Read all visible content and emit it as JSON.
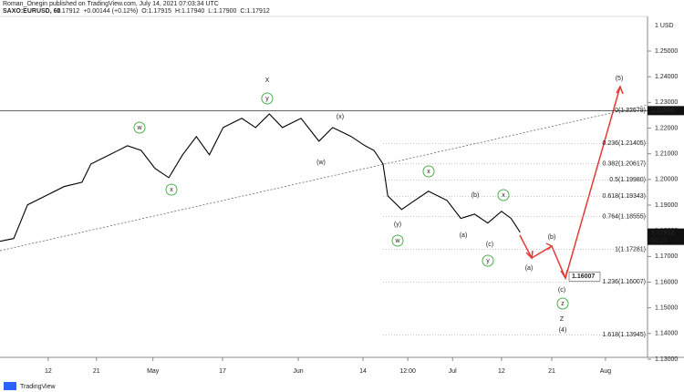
{
  "chart_data": {
    "type": "line",
    "title": "Roman_Onegin published on TradingView.com, July 14, 2021 07:03:34 UTC",
    "symbol": "SAXO:EURUSD, 60",
    "quote": [
      "1.17912",
      "+0.00144 (+0.12%)",
      "O:1.17915",
      "H:1.17940",
      "L:1.17900",
      "C:1.17912"
    ],
    "y_unit": "1 USD",
    "brand": "TradingView",
    "series": [
      {
        "name": "EURUSD",
        "color": "#000000",
        "x": [
          -7.0,
          -5.0,
          -3.0,
          -0.4,
          2.3,
          4.9,
          6.2,
          8.9,
          11.5,
          13.5,
          15.5,
          17.5,
          19.5,
          21.5,
          23.4,
          25.4,
          28.1,
          30.1,
          32.1,
          34.0,
          36.7,
          39.3,
          41.3,
          44.0,
          46.0,
          47.3,
          48.6,
          49.3,
          51.3,
          53.2,
          55.2,
          57.9,
          59.9,
          61.9,
          63.8,
          65.8,
          67.2,
          68.5
        ],
        "values": [
          1.1759,
          1.177,
          1.1901,
          1.1936,
          1.1972,
          1.1989,
          1.206,
          1.2096,
          1.2131,
          1.2113,
          1.2043,
          1.2007,
          1.2096,
          1.2167,
          1.2096,
          1.2202,
          1.2238,
          1.2202,
          1.2255,
          1.2202,
          1.2238,
          1.2149,
          1.2202,
          1.2167,
          1.2131,
          1.2113,
          1.206,
          1.1936,
          1.1883,
          1.1918,
          1.1954,
          1.1918,
          1.1848,
          1.1865,
          1.183,
          1.1876,
          1.1848,
          1.1794
        ]
      }
    ],
    "xlim": [
      -7,
      87
    ],
    "xticks": [
      {
        "value": 0,
        "label": "12"
      },
      {
        "value": 7,
        "label": "21"
      },
      {
        "value": 15.2,
        "label": "May"
      },
      {
        "value": 25.3,
        "label": "17"
      },
      {
        "value": 36.3,
        "label": "Jun"
      },
      {
        "value": 45.7,
        "label": "14"
      },
      {
        "value": 52.2,
        "label": "12:00"
      },
      {
        "value": 58.7,
        "label": "Jul"
      },
      {
        "value": 65.8,
        "label": "12"
      },
      {
        "value": 73.1,
        "label": "21"
      },
      {
        "value": 80.9,
        "label": "Aug"
      }
    ],
    "ylim": [
      1.1307,
      1.2635
    ],
    "yticks": [
      {
        "value": 1.13,
        "label": "1.13000"
      },
      {
        "value": 1.14,
        "label": "1.14000"
      },
      {
        "value": 1.15,
        "label": "1.15000"
      },
      {
        "value": 1.16,
        "label": "1.16000"
      },
      {
        "value": 1.17,
        "label": "1.17000"
      },
      {
        "value": 1.18,
        "label": "1.18000"
      },
      {
        "value": 1.19,
        "label": "1.19000"
      },
      {
        "value": 1.2,
        "label": "1.20000"
      },
      {
        "value": 1.21,
        "label": "1.21000"
      },
      {
        "value": 1.22,
        "label": "1.22000"
      },
      {
        "value": 1.23,
        "label": "1.23000"
      },
      {
        "value": 1.24,
        "label": "1.24000"
      },
      {
        "value": 1.25,
        "label": "1.25000"
      }
    ],
    "fib_levels": [
      {
        "value": 1.22679,
        "label": "0(1.22679)"
      },
      {
        "value": 1.21405,
        "label": "0.236(1.21405)"
      },
      {
        "value": 1.20617,
        "label": "0.382(1.20617)"
      },
      {
        "value": 1.1998,
        "label": "0.5(1.19980)"
      },
      {
        "value": 1.19343,
        "label": "0.618(1.19343)"
      },
      {
        "value": 1.18555,
        "label": "0.764(1.18555)"
      },
      {
        "value": 1.17281,
        "label": "1(1.17281)"
      },
      {
        "value": 1.16007,
        "label": "1.236(1.16007)"
      },
      {
        "value": 1.13945,
        "label": "1.618(1.13945)"
      }
    ],
    "price_labels": [
      {
        "value": 1.2268,
        "label": "1.22680"
      },
      {
        "value": 1.17912,
        "label": "1.17912",
        "sub": "56:29"
      }
    ],
    "callout": {
      "value": 1.16007,
      "label": "1.16007"
    },
    "annotations": [
      {
        "text": "X",
        "color": "#26a6c9",
        "style": "plain"
      },
      {
        "text": "y",
        "color": "#4caf50",
        "style": "circle"
      },
      {
        "text": "w",
        "color": "#4caf50",
        "style": "circle"
      },
      {
        "text": "x",
        "color": "#4caf50",
        "style": "circle"
      },
      {
        "text": "(x)",
        "color": "#f4a4a4",
        "style": "plain"
      },
      {
        "text": "(w)",
        "color": "#f4a4a4",
        "style": "plain"
      },
      {
        "text": "x",
        "color": "#4caf50",
        "style": "circle"
      },
      {
        "text": "(y)",
        "color": "#f4a4a4",
        "style": "plain"
      },
      {
        "text": "w",
        "color": "#4caf50",
        "style": "circle"
      },
      {
        "text": "(b)",
        "color": "#f08080",
        "style": "plain"
      },
      {
        "text": "x",
        "color": "#4caf50",
        "style": "circle"
      },
      {
        "text": "(a)",
        "color": "#f08080",
        "style": "plain"
      },
      {
        "text": "(c)",
        "color": "#f08080",
        "style": "plain"
      },
      {
        "text": "y",
        "color": "#4caf50",
        "style": "circle"
      },
      {
        "text": "(b)",
        "color": "#f08080",
        "style": "plain"
      },
      {
        "text": "(a)",
        "color": "#f08080",
        "style": "plain"
      },
      {
        "text": "(c)",
        "color": "#f08080",
        "style": "plain"
      },
      {
        "text": "z",
        "color": "#4caf50",
        "style": "circle"
      },
      {
        "text": "Z",
        "color": "#26a6c9",
        "style": "plain"
      },
      {
        "text": "(4)",
        "color": "#e53935",
        "style": "plain"
      },
      {
        "text": "(5)",
        "color": "#e53935",
        "style": "plain"
      }
    ]
  }
}
